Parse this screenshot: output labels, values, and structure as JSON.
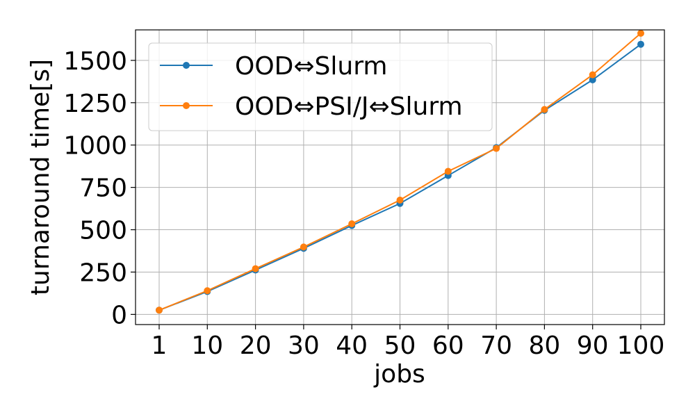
{
  "chart_data": {
    "type": "line",
    "title": "",
    "xlabel": "jobs",
    "ylabel": "turnaround time[s]",
    "categories": [
      "1",
      "10",
      "20",
      "30",
      "40",
      "50",
      "60",
      "70",
      "80",
      "90",
      "100"
    ],
    "ylim": [
      -60,
      1680
    ],
    "yticks": [
      0,
      250,
      500,
      750,
      1000,
      1250,
      1500
    ],
    "grid": true,
    "legend_position": "top-left",
    "series": [
      {
        "name": "OOD⇔Slurm",
        "color": "#1f77b4",
        "values": [
          25,
          135,
          262,
          390,
          525,
          655,
          820,
          985,
          1205,
          1385,
          1595
        ]
      },
      {
        "name": "OOD⇔PSI/J⇔Slurm",
        "color": "#ff7f0e",
        "values": [
          25,
          140,
          270,
          398,
          535,
          675,
          845,
          980,
          1210,
          1415,
          1660
        ]
      }
    ]
  }
}
